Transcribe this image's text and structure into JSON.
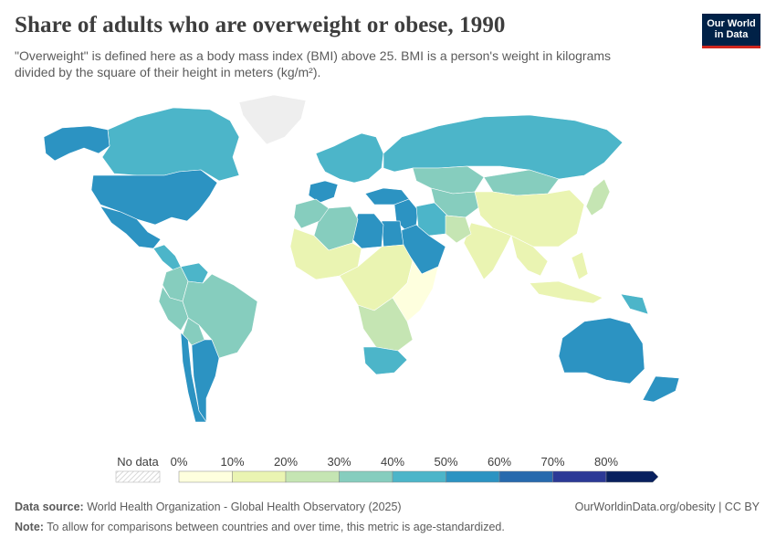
{
  "header": {
    "title": "Share of adults who are overweight or obese, 1990",
    "subtitle": "\"Overweight\" is defined here as a body mass index (BMI) above 25. BMI is a person's weight in kilograms divided by the square of their height in meters (kg/m²)."
  },
  "logo": {
    "line1": "Our World",
    "line2": "in Data"
  },
  "legend": {
    "no_data_label": "No data",
    "tick_labels": [
      "0%",
      "10%",
      "20%",
      "30%",
      "40%",
      "50%",
      "60%",
      "70%",
      "80%"
    ],
    "bin_colors": [
      "#feffde",
      "#eaf4b2",
      "#c5e5b3",
      "#86cdbe",
      "#4cb5c9",
      "#2c93c2",
      "#2769ad",
      "#2c3996",
      "#08205e"
    ]
  },
  "footer": {
    "source_label": "Data source:",
    "source_text": "World Health Organization - Global Health Observatory (2025)",
    "url_text": "OurWorldinData.org/obesity | CC BY",
    "note_label": "Note:",
    "note_text": "To allow for comparisons between countries and over time, this metric is age-standardized."
  },
  "chart_data": {
    "type": "choropleth",
    "title": "Share of adults who are overweight or obese, 1990",
    "unit": "%",
    "bins": [
      0,
      10,
      20,
      30,
      40,
      50,
      60,
      70,
      80
    ],
    "regions": [
      {
        "name": "Canada",
        "value": 45
      },
      {
        "name": "Alaska",
        "value": 55
      },
      {
        "name": "United States",
        "value": 55
      },
      {
        "name": "Mexico",
        "value": 50
      },
      {
        "name": "Central America",
        "value": 40
      },
      {
        "name": "Greenland",
        "value": null
      },
      {
        "name": "Venezuela",
        "value": 45
      },
      {
        "name": "Colombia",
        "value": 35
      },
      {
        "name": "Brazil",
        "value": 35
      },
      {
        "name": "Peru",
        "value": 35
      },
      {
        "name": "Bolivia",
        "value": 30
      },
      {
        "name": "Argentina",
        "value": 50
      },
      {
        "name": "Chile",
        "value": 50
      },
      {
        "name": "Western Europe",
        "value": 45
      },
      {
        "name": "Spain",
        "value": 55
      },
      {
        "name": "Russia",
        "value": 45
      },
      {
        "name": "Kazakhstan",
        "value": 35
      },
      {
        "name": "Central Asia",
        "value": 35
      },
      {
        "name": "Turkey",
        "value": 55
      },
      {
        "name": "Middle East",
        "value": 55
      },
      {
        "name": "Saudi Arabia",
        "value": 55
      },
      {
        "name": "Iran",
        "value": 40
      },
      {
        "name": "Egypt",
        "value": 55
      },
      {
        "name": "Libya",
        "value": 50
      },
      {
        "name": "Algeria",
        "value": 30
      },
      {
        "name": "Morocco",
        "value": 35
      },
      {
        "name": "West Africa",
        "value": 15
      },
      {
        "name": "Central Africa",
        "value": 12
      },
      {
        "name": "East Africa",
        "value": 8
      },
      {
        "name": "Southern Africa",
        "value": 25
      },
      {
        "name": "South Africa",
        "value": 40
      },
      {
        "name": "Mongolia",
        "value": 35
      },
      {
        "name": "China",
        "value": 18
      },
      {
        "name": "Japan",
        "value": 25
      },
      {
        "name": "India",
        "value": 10
      },
      {
        "name": "Pakistan",
        "value": 25
      },
      {
        "name": "Southeast Asia",
        "value": 15
      },
      {
        "name": "Indonesia",
        "value": 15
      },
      {
        "name": "Philippines",
        "value": 15
      },
      {
        "name": "Papua New Guinea",
        "value": 40
      },
      {
        "name": "Australia",
        "value": 50
      },
      {
        "name": "New Zealand",
        "value": 50
      }
    ]
  }
}
